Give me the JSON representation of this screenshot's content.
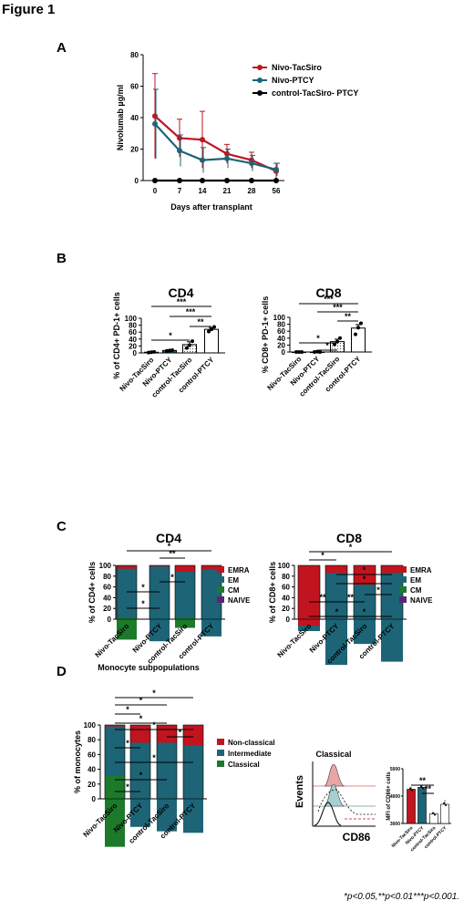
{
  "figure_title": "Figure 1",
  "footnote": "*p<0.05,**p<0.01***p<0.001.",
  "colors": {
    "red": "#c0141e",
    "teal": "#1d6476",
    "green": "#1c7a2a",
    "purple": "#5b2477",
    "black": "#000000"
  },
  "chart_data": [
    {
      "id": "A",
      "panel_letter": "A",
      "type": "line",
      "x": [
        "0",
        "7",
        "14",
        "21",
        "28",
        "56"
      ],
      "xlabel": "Days after transplant",
      "ylabel": "Nivolumab µg/ml",
      "ylim": [
        0,
        80
      ],
      "yticks": [
        "0",
        "20",
        "40",
        "60",
        "80"
      ],
      "series": [
        {
          "name": "Nivo-TacSiro",
          "color": "#c0141e",
          "values": [
            41,
            27,
            26,
            17,
            13,
            6
          ],
          "err": [
            27,
            12,
            18,
            6,
            5,
            5
          ]
        },
        {
          "name": "Nivo-PTCY",
          "color": "#1d6476",
          "values": [
            36,
            19,
            13,
            14,
            11,
            7
          ],
          "err": [
            22,
            10,
            8,
            6,
            5,
            4
          ]
        },
        {
          "name": "control-TacSiro- PTCY",
          "color": "#000000",
          "values": [
            0,
            0,
            0,
            0,
            0,
            0
          ],
          "err": [
            0,
            0,
            0,
            0,
            0,
            0
          ]
        }
      ]
    },
    {
      "id": "B1",
      "panel_letter": "B",
      "type": "bar",
      "title": "CD4",
      "ylabel": "% of CD4+ PD-1+ cells",
      "ylim": [
        0,
        100
      ],
      "yticks": [
        "0",
        "20",
        "40",
        "60",
        "80",
        "100"
      ],
      "categories": [
        "Nivo-TacSiro",
        "Nivo-PTCY",
        "control-TacSiro",
        "control-PTCY"
      ],
      "values": [
        2,
        7,
        24,
        68
      ],
      "err": [
        1,
        1,
        8,
        5
      ],
      "points": [
        [
          1,
          2,
          3
        ],
        [
          6,
          7,
          8
        ],
        [
          14,
          22,
          34
        ],
        [
          62,
          68,
          75
        ]
      ],
      "significance": [
        "*",
        "***",
        "***",
        "**"
      ]
    },
    {
      "id": "B2",
      "type": "bar",
      "title": "CD8",
      "ylabel": "% CD8+ PD-1+ cells",
      "ylim": [
        0,
        100
      ],
      "yticks": [
        "0",
        "20",
        "40",
        "60",
        "80",
        "100"
      ],
      "categories": [
        "Nivo-TacSiro",
        "Nivo-PTCY",
        "control-TacSiro",
        "control-PTCY"
      ],
      "values": [
        0,
        0,
        30,
        69
      ],
      "err": [
        0,
        0,
        7,
        10
      ],
      "points": [
        [
          0,
          0,
          0
        ],
        [
          0,
          1,
          0
        ],
        [
          22,
          30,
          40
        ],
        [
          51,
          70,
          83
        ]
      ],
      "significance": [
        "*",
        "*",
        "***",
        "***",
        "**"
      ]
    },
    {
      "id": "C1",
      "panel_letter": "C",
      "type": "bar",
      "title": "CD4",
      "ylabel": "% of CD4+ cells",
      "ylim": [
        0,
        100
      ],
      "yticks": [
        "0",
        "20",
        "40",
        "60",
        "80",
        "100"
      ],
      "categories": [
        "Nivo-TacSiro",
        "Nivo-PTCY",
        "control-TacSiro",
        "control-PTCY"
      ],
      "series": [
        {
          "name": "NAIVE",
          "color": "#5b2477",
          "values": [
            6,
            4,
            16,
            8
          ]
        },
        {
          "name": "CM",
          "color": "#1c7a2a",
          "values": [
            44,
            25,
            32,
            24
          ]
        },
        {
          "name": "EM",
          "color": "#1d6476",
          "values": [
            47,
            70,
            46,
            64
          ]
        },
        {
          "name": "EMRA",
          "color": "#c0141e",
          "values": [
            3,
            1,
            6,
            4
          ]
        }
      ],
      "legend_order": [
        "EMRA",
        "EM",
        "CM",
        "NAIVE"
      ],
      "significance": [
        "*",
        "**",
        "*",
        "*",
        "*"
      ]
    },
    {
      "id": "C2",
      "type": "bar",
      "title": "CD8",
      "ylabel": "% of CD8+ cells",
      "ylim": [
        0,
        100
      ],
      "yticks": [
        "0",
        "20",
        "40",
        "60",
        "80",
        "100"
      ],
      "categories": [
        "Nivo-TacSiro",
        "Nivo-PTCY",
        "control-TacSiro",
        "control-PTCY"
      ],
      "series": [
        {
          "name": "NAIVE",
          "color": "#5b2477",
          "values": [
            2,
            1,
            10,
            3
          ]
        },
        {
          "name": "CM",
          "color": "#1c7a2a",
          "values": [
            9,
            3,
            8,
            4
          ]
        },
        {
          "name": "EM",
          "color": "#1d6476",
          "values": [
            33,
            89,
            64,
            86
          ]
        },
        {
          "name": "EMRA",
          "color": "#c0141e",
          "values": [
            56,
            7,
            18,
            7
          ]
        }
      ],
      "legend_order": [
        "EMRA",
        "EM",
        "CM",
        "NAIVE"
      ],
      "significance": [
        "*",
        "*",
        "**",
        "**",
        "*",
        "*",
        "*",
        "*",
        "*"
      ]
    },
    {
      "id": "D1",
      "panel_letter": "D",
      "type": "bar",
      "title": "Monocyte subpopulations",
      "ylabel": "% of monocytes",
      "ylim": [
        0,
        100
      ],
      "yticks": [
        "0",
        "20",
        "40",
        "60",
        "80",
        "100"
      ],
      "categories": [
        "Nivo-TacSiro",
        "Nivo-PTCY",
        "control-TacSiro",
        "control-PTCY"
      ],
      "series": [
        {
          "name": "Classical",
          "color": "#1c7a2a",
          "values": [
            65,
            25,
            22,
            20
          ]
        },
        {
          "name": "Intermediate",
          "color": "#1d6476",
          "values": [
            34,
            63,
            66,
            66
          ]
        },
        {
          "name": "Non-classical",
          "color": "#c0141e",
          "values": [
            1,
            12,
            12,
            14
          ]
        }
      ],
      "legend_order": [
        "Non-classical",
        "Intermediate",
        "Classical"
      ],
      "significance": [
        "*",
        "*",
        "*",
        "*",
        "*",
        "*",
        "*",
        "*",
        "*",
        "*"
      ]
    },
    {
      "id": "D2",
      "type": "histogram",
      "title": "Classical",
      "xlabel": "CD86",
      "ylabel": "Events"
    },
    {
      "id": "D3",
      "type": "bar",
      "ylabel": "MFI of CD86+ cells",
      "ylim": [
        3000,
        5000
      ],
      "yticks": [
        "3000",
        "4000",
        "5000"
      ],
      "categories": [
        "Nivo-TacSiro",
        "Nivo-PTCY",
        "control-TacSiro",
        "control-PTCY"
      ],
      "values": [
        4250,
        4320,
        3350,
        3700
      ],
      "err": [
        90,
        60,
        60,
        160
      ],
      "colors": [
        "#c0141e",
        "#1d6476",
        "#ffffff",
        "#ffffff"
      ],
      "significance": [
        "**",
        "**"
      ]
    }
  ]
}
